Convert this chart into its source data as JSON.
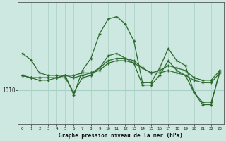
{
  "title": "Graphe pression niveau de la mer (hPa)",
  "x_labels": [
    "0",
    "1",
    "2",
    "3",
    "4",
    "5",
    "6",
    "7",
    "8",
    "9",
    "10",
    "11",
    "12",
    "13",
    "14",
    "15",
    "16",
    "17",
    "18",
    "19",
    "20",
    "21",
    "22",
    "23"
  ],
  "hours": [
    0,
    1,
    2,
    3,
    4,
    5,
    6,
    7,
    8,
    9,
    10,
    11,
    12,
    13,
    14,
    15,
    16,
    17,
    18,
    19,
    20,
    21,
    22,
    23
  ],
  "line_color": "#2d6a2d",
  "bg_color": "#cce8e0",
  "grid_color": "#a8cfc4",
  "ytick_label": "1010",
  "ytick_value": 1010,
  "series": {
    "line1": [
      1017.5,
      1016.2,
      1013.5,
      1013.0,
      1013.0,
      1013.0,
      1009.0,
      1014.0,
      1016.5,
      1021.5,
      1024.5,
      1025.0,
      1023.5,
      1020.0,
      1011.5,
      1011.5,
      1014.5,
      1018.5,
      1016.0,
      1015.0,
      1009.5,
      1007.0,
      1007.0,
      1014.0
    ],
    "line2": [
      1013.0,
      1012.5,
      1012.5,
      1012.5,
      1012.5,
      1013.0,
      1013.0,
      1013.5,
      1013.5,
      1014.0,
      1015.5,
      1016.0,
      1016.0,
      1015.5,
      1014.5,
      1013.5,
      1013.5,
      1014.0,
      1013.5,
      1013.0,
      1012.0,
      1011.5,
      1011.5,
      1013.5
    ],
    "line3": [
      1013.0,
      1012.5,
      1012.5,
      1012.5,
      1012.5,
      1013.0,
      1012.5,
      1013.0,
      1013.5,
      1014.5,
      1016.0,
      1016.5,
      1016.5,
      1016.0,
      1014.5,
      1013.5,
      1014.0,
      1015.0,
      1014.5,
      1014.0,
      1012.5,
      1012.0,
      1012.0,
      1014.0
    ],
    "line4": [
      1013.0,
      1012.5,
      1012.0,
      1012.0,
      1012.5,
      1012.5,
      1009.5,
      1012.5,
      1013.0,
      1014.5,
      1017.0,
      1017.5,
      1016.5,
      1015.5,
      1011.0,
      1011.0,
      1013.0,
      1016.0,
      1014.0,
      1013.0,
      1009.5,
      1007.5,
      1007.5,
      1013.5
    ]
  },
  "ylim": [
    1003,
    1028
  ],
  "xlim": [
    -0.5,
    23.5
  ]
}
